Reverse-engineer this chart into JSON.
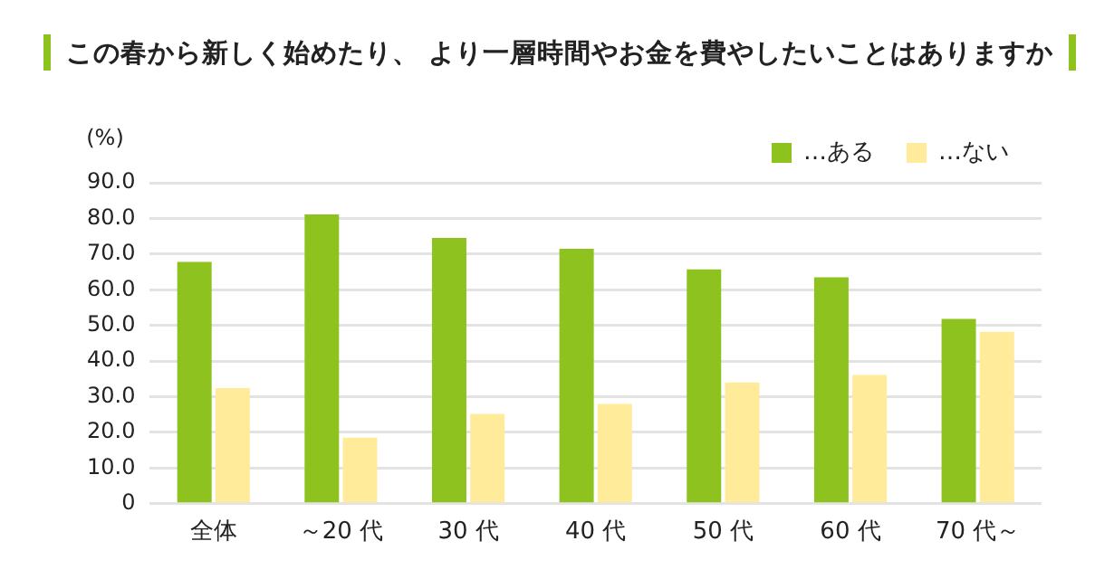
{
  "chart_data": {
    "type": "bar",
    "title": "この春から新しく始めたり、 より一層時間やお金を費やしたいことはありますか",
    "ylabel": "(%)",
    "categories": [
      "全体",
      "～20 代",
      "30 代",
      "40 代",
      "50 代",
      "60 代",
      "70 代～"
    ],
    "series": [
      {
        "name": "…ある",
        "color": "#8dc21f",
        "values": [
          67.8,
          81.1,
          74.5,
          71.5,
          65.7,
          63.5,
          51.8
        ]
      },
      {
        "name": "…ない",
        "color": "#ffeb99",
        "values": [
          32.4,
          18.5,
          25.2,
          28.0,
          34.0,
          36.1,
          48.2
        ]
      }
    ],
    "ylim": [
      0,
      90
    ],
    "yticks": [
      {
        "value": 0,
        "label": "0"
      },
      {
        "value": 10,
        "label": "10.0"
      },
      {
        "value": 20,
        "label": "20.0"
      },
      {
        "value": 30,
        "label": "30.0"
      },
      {
        "value": 40,
        "label": "40.0"
      },
      {
        "value": 50,
        "label": "50.0"
      },
      {
        "value": 60,
        "label": "60.0"
      },
      {
        "value": 70,
        "label": "70.0"
      },
      {
        "value": 80,
        "label": "80.0"
      },
      {
        "value": 90,
        "label": "90.0"
      }
    ],
    "grid": "y",
    "legend": "top right"
  }
}
